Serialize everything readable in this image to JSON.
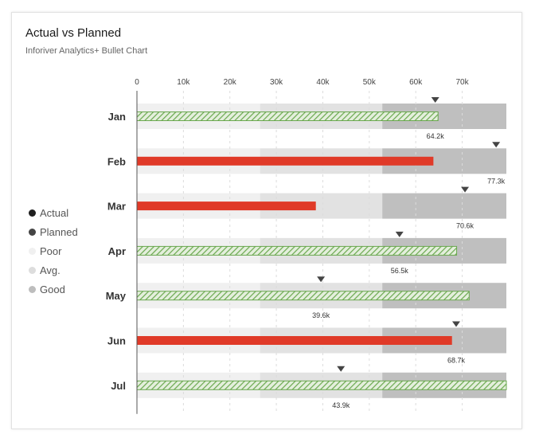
{
  "title": "Actual vs Planned",
  "subtitle": "Inforiver Analytics+ Bullet Chart",
  "legend": [
    {
      "label": "Actual",
      "color": "#1f1f1f"
    },
    {
      "label": "Planned",
      "color": "#444444"
    },
    {
      "label": "Poor",
      "color": "#f0f0f0"
    },
    {
      "label": "Avg.",
      "color": "#dddddd"
    },
    {
      "label": "Good",
      "color": "#bdbdbd"
    }
  ],
  "chart_data": {
    "type": "bar",
    "orientation": "horizontal",
    "categories": [
      "Jan",
      "Feb",
      "Mar",
      "Apr",
      "May",
      "Jun",
      "Jul"
    ],
    "actual": [
      64800,
      63800,
      38500,
      68800,
      71500,
      67800,
      79500
    ],
    "planned": [
      64200,
      77300,
      70600,
      56500,
      39600,
      68700,
      43900
    ],
    "planned_labels": [
      "64.2k",
      "77.3k",
      "70.6k",
      "56.5k",
      "39.6k",
      "68.7k",
      "43.9k"
    ],
    "actual_status": [
      "above",
      "below",
      "below",
      "above",
      "above",
      "below",
      "above"
    ],
    "ranges": {
      "poor": [
        0,
        26500
      ],
      "avg": [
        26500,
        52800
      ],
      "good": [
        52800,
        79500
      ]
    },
    "x_ticks": [
      0,
      10000,
      20000,
      30000,
      40000,
      50000,
      60000,
      70000
    ],
    "x_tick_labels": [
      "0",
      "10k",
      "20k",
      "30k",
      "40k",
      "50k",
      "60k",
      "70k"
    ],
    "xlim": [
      0,
      79500
    ],
    "colors": {
      "above": "#6aa84f",
      "below": "#e03a28",
      "poor": "#f0f0f0",
      "avg": "#e2e2e2",
      "good": "#bfbfbf",
      "marker": "#444444"
    }
  }
}
